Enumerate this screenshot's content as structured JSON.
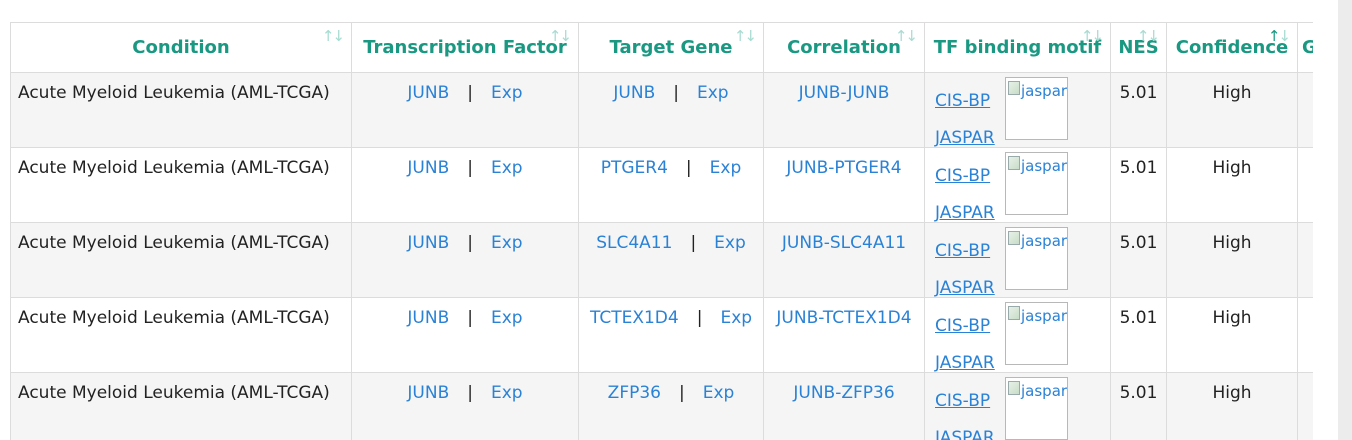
{
  "columns": [
    {
      "key": "condition",
      "label": "Condition"
    },
    {
      "key": "tf",
      "label": "Transcription Factor"
    },
    {
      "key": "target",
      "label": "Target Gene"
    },
    {
      "key": "correlation",
      "label": "Correlation"
    },
    {
      "key": "motif",
      "label": "TF binding motif"
    },
    {
      "key": "nes",
      "label": "NES"
    },
    {
      "key": "confidence",
      "label": "Confidence"
    },
    {
      "key": "extra",
      "label": "G"
    }
  ],
  "sort_glyph": "↑↓",
  "exp_label": "Exp",
  "separator": "|",
  "motif_links": {
    "cisbp": "CIS-BP",
    "jaspar": "JASPAR"
  },
  "motif_img_alt": "jaspar",
  "rows": [
    {
      "condition": "Acute Myeloid Leukemia (AML-TCGA)",
      "tf": "JUNB",
      "target": "JUNB",
      "correlation": "JUNB-JUNB",
      "nes": "5.01",
      "confidence": "High"
    },
    {
      "condition": "Acute Myeloid Leukemia (AML-TCGA)",
      "tf": "JUNB",
      "target": "PTGER4",
      "correlation": "JUNB-PTGER4",
      "nes": "5.01",
      "confidence": "High"
    },
    {
      "condition": "Acute Myeloid Leukemia (AML-TCGA)",
      "tf": "JUNB",
      "target": "SLC4A11",
      "correlation": "JUNB-SLC4A11",
      "nes": "5.01",
      "confidence": "High"
    },
    {
      "condition": "Acute Myeloid Leukemia (AML-TCGA)",
      "tf": "JUNB",
      "target": "TCTEX1D4",
      "correlation": "JUNB-TCTEX1D4",
      "nes": "5.01",
      "confidence": "High"
    },
    {
      "condition": "Acute Myeloid Leukemia (AML-TCGA)",
      "tf": "JUNB",
      "target": "ZFP36",
      "correlation": "JUNB-ZFP36",
      "nes": "5.01",
      "confidence": "High"
    }
  ]
}
